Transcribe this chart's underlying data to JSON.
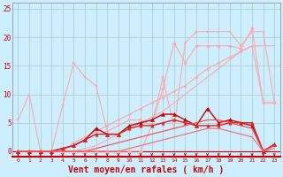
{
  "bg_color": "#cceeff",
  "grid_color": "#aacccc",
  "xlabel": "Vent moyen/en rafales ( km/h )",
  "xlabel_color": "#cc0000",
  "xlabel_fontsize": 7,
  "ylim": [
    -1,
    26
  ],
  "xlim": [
    -0.5,
    23.5
  ],
  "lines": [
    {
      "x": [
        0,
        1,
        2,
        3,
        4,
        5,
        6,
        7,
        8,
        9,
        10,
        11,
        12,
        13,
        14,
        15,
        16,
        17,
        18,
        19,
        20,
        21,
        22,
        23
      ],
      "y": [
        0,
        0,
        0,
        0,
        0,
        0,
        0.5,
        1.0,
        2.0,
        3.0,
        4.0,
        5.0,
        6.0,
        7.0,
        8.5,
        10.0,
        11.5,
        13.0,
        14.5,
        16.0,
        17.5,
        18.5,
        18.5,
        18.5
      ],
      "color": "#ffaaaa",
      "lw": 0.8,
      "marker": null
    },
    {
      "x": [
        0,
        1,
        2,
        3,
        4,
        5,
        6,
        7,
        8,
        9,
        10,
        11,
        12,
        13,
        14,
        15,
        16,
        17,
        18,
        19,
        20,
        21,
        22,
        23
      ],
      "y": [
        5.5,
        10.0,
        0,
        0,
        8.0,
        15.5,
        13.0,
        11.5,
        3.5,
        4.5,
        5.5,
        5.5,
        4.5,
        13.0,
        4.0,
        19.0,
        21.0,
        21.0,
        21.0,
        21.0,
        18.5,
        21.0,
        21.0,
        8.5
      ],
      "color": "#ffaaaa",
      "lw": 0.8,
      "marker": "s",
      "markersize": 2.0
    },
    {
      "x": [
        0,
        1,
        2,
        3,
        4,
        5,
        6,
        7,
        8,
        9,
        10,
        11,
        12,
        13,
        14,
        15,
        16,
        17,
        18,
        19,
        20,
        21,
        22,
        23
      ],
      "y": [
        0,
        0,
        0,
        0,
        0,
        0,
        0,
        0,
        0,
        0,
        0,
        0,
        4.5,
        11.0,
        19.0,
        15.5,
        18.5,
        18.5,
        18.5,
        18.5,
        18.0,
        21.5,
        8.5,
        8.5
      ],
      "color": "#ffaaaa",
      "lw": 0.8,
      "marker": "D",
      "markersize": 2.0
    },
    {
      "x": [
        0,
        1,
        2,
        3,
        4,
        5,
        6,
        7,
        8,
        9,
        10,
        11,
        12,
        13,
        14,
        15,
        16,
        17,
        18,
        19,
        20,
        21,
        22,
        23
      ],
      "y": [
        0,
        0,
        0,
        0,
        0,
        1.5,
        2.5,
        3.5,
        4.5,
        5.5,
        6.5,
        7.5,
        8.5,
        9.5,
        10.5,
        11.5,
        13.0,
        14.5,
        15.5,
        16.5,
        17.5,
        18.5,
        8.5,
        8.5
      ],
      "color": "#ffaaaa",
      "lw": 0.8,
      "marker": "o",
      "markersize": 2.0
    },
    {
      "x": [
        0,
        1,
        2,
        3,
        4,
        5,
        6,
        7,
        8,
        9,
        10,
        11,
        12,
        13,
        14,
        15,
        16,
        17,
        18,
        19,
        20,
        21,
        22,
        23
      ],
      "y": [
        0,
        0,
        0,
        0,
        0.5,
        1.0,
        2.0,
        4.0,
        3.0,
        3.0,
        4.5,
        5.0,
        5.5,
        6.5,
        6.5,
        5.5,
        4.5,
        7.5,
        5.0,
        5.5,
        5.0,
        4.5,
        0,
        1.2
      ],
      "color": "#cc0000",
      "lw": 1.0,
      "marker": "^",
      "markersize": 3.0
    },
    {
      "x": [
        0,
        1,
        2,
        3,
        4,
        5,
        6,
        7,
        8,
        9,
        10,
        11,
        12,
        13,
        14,
        15,
        16,
        17,
        18,
        19,
        20,
        21,
        22,
        23
      ],
      "y": [
        0,
        0,
        0,
        0,
        0.5,
        1.0,
        2.0,
        3.0,
        3.0,
        3.0,
        4.0,
        4.5,
        4.5,
        5.0,
        5.5,
        5.0,
        4.5,
        4.5,
        4.5,
        5.0,
        5.0,
        5.0,
        0,
        1.2
      ],
      "color": "#dd2222",
      "lw": 1.0,
      "marker": "^",
      "markersize": 2.5
    },
    {
      "x": [
        0,
        1,
        2,
        3,
        4,
        5,
        6,
        7,
        8,
        9,
        10,
        11,
        12,
        13,
        14,
        15,
        16,
        17,
        18,
        19,
        20,
        21,
        22,
        23
      ],
      "y": [
        0,
        0,
        0,
        0,
        0,
        0,
        0,
        0.5,
        1.0,
        1.5,
        2.0,
        2.5,
        3.0,
        3.5,
        4.0,
        4.5,
        5.0,
        5.5,
        5.5,
        5.0,
        4.5,
        4.0,
        0,
        1.0
      ],
      "color": "#ff4444",
      "lw": 0.8,
      "marker": null
    },
    {
      "x": [
        0,
        1,
        2,
        3,
        4,
        5,
        6,
        7,
        8,
        9,
        10,
        11,
        12,
        13,
        14,
        15,
        16,
        17,
        18,
        19,
        20,
        21,
        22,
        23
      ],
      "y": [
        0,
        0,
        0,
        0,
        0,
        0,
        0,
        0,
        0,
        0,
        0.5,
        1.0,
        1.5,
        2.0,
        2.5,
        3.0,
        3.5,
        4.0,
        4.0,
        3.5,
        3.0,
        2.5,
        0,
        0.5
      ],
      "color": "#ff6666",
      "lw": 0.8,
      "marker": null
    }
  ]
}
